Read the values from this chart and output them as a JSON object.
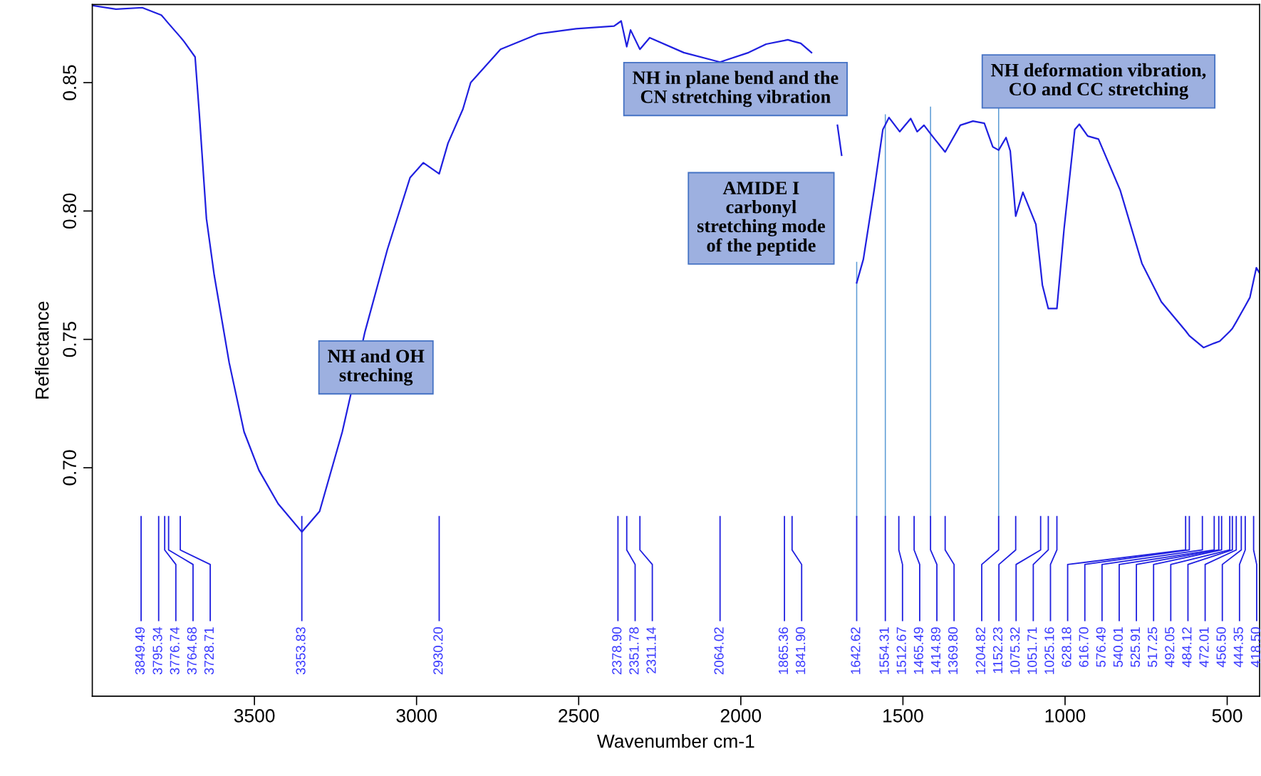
{
  "chart_data": {
    "type": "line",
    "xlabel": "Wavenumber cm-1",
    "ylabel": "Reflectance",
    "xlim": [
      4000,
      400
    ],
    "ylim": [
      0.611,
      0.8804
    ],
    "xticks": [
      3500,
      3000,
      2500,
      2000,
      1500,
      1000,
      500
    ],
    "yticks": [
      {
        "value": 0.7,
        "label": "0.70"
      },
      {
        "value": 0.75,
        "label": "0.75"
      },
      {
        "value": 0.8,
        "label": "0.80"
      },
      {
        "value": 0.85,
        "label": "0.85"
      }
    ],
    "grid": false,
    "marker": "none",
    "line_style": "solid",
    "series": [
      {
        "color": "#2020e0",
        "x": [
          3999,
          3927,
          3846,
          3795.34,
          3787,
          3776.74,
          3764.68,
          3728.71,
          3717,
          3683,
          3670,
          3648,
          3624,
          3578,
          3532,
          3486,
          3427,
          3353.83,
          3299,
          3229,
          3159,
          3090,
          3020,
          2979,
          2930.2,
          2903,
          2857,
          2833,
          2741,
          2624,
          2508,
          2391,
          2378.9,
          2369,
          2351.78,
          2340,
          2311.14,
          2281,
          2176,
          2064.02,
          1976,
          1922,
          1865.36,
          1855,
          1841.9,
          1815,
          1782,
          1740,
          1702,
          1689,
          1665,
          1642.62,
          1622,
          1589,
          1562,
          1554.31,
          1543,
          1510,
          1476,
          1465.49,
          1456,
          1435,
          1414.89,
          1402,
          1369.8,
          1323,
          1284,
          1249,
          1223,
          1204.82,
          1182,
          1169,
          1152.23,
          1130,
          1090,
          1075.32,
          1070,
          1051.71,
          1025.16,
          1003,
          970,
          956,
          930,
          897,
          830,
          763,
          703,
          628.18,
          616.7,
          573,
          540.01,
          523,
          517.25,
          492.05,
          484.12,
          472.01,
          456.5,
          444.35,
          430,
          418.5,
          410,
          401
        ],
        "values": [
          0.88,
          0.8786,
          0.8792,
          0.8767,
          0.8763,
          0.8748,
          0.873,
          0.8678,
          0.866,
          0.86,
          0.838,
          0.797,
          0.775,
          0.741,
          0.714,
          0.699,
          0.686,
          0.675,
          0.683,
          0.714,
          0.753,
          0.785,
          0.813,
          0.8188,
          0.8145,
          0.8264,
          0.8397,
          0.85,
          0.863,
          0.869,
          0.871,
          0.872,
          0.8731,
          0.874,
          0.864,
          0.8705,
          0.863,
          0.8675,
          0.8617,
          0.858,
          0.8617,
          0.865,
          0.8664,
          0.8667,
          0.8662,
          0.8653,
          0.8617,
          null,
          0.8334,
          0.8217,
          null,
          0.772,
          0.7812,
          0.808,
          0.8317,
          0.8336,
          0.8364,
          0.8309,
          0.836,
          0.8333,
          0.8309,
          0.8334,
          0.8301,
          0.828,
          0.823,
          0.8334,
          0.835,
          0.8342,
          0.825,
          0.8237,
          0.8286,
          0.8234,
          0.798,
          0.8073,
          0.7948,
          0.7776,
          0.7712,
          0.762,
          0.762,
          0.7931,
          0.8317,
          0.8338,
          0.8292,
          0.828,
          0.8081,
          0.7796,
          0.7646,
          0.7533,
          0.7514,
          0.7468,
          0.7485,
          0.7493,
          0.75,
          0.7531,
          0.7542,
          0.7568,
          0.7603,
          0.763,
          0.7663,
          0.773,
          0.7779,
          0.776
        ]
      }
    ],
    "annotations": [
      "NH in plane bend and the\nCN stretching vibration",
      "NH deformation vibration,\nCO and CC stretching",
      "AMIDE I\ncarbonyl\nstretching mode\nof the peptide",
      "NH and OH\nstreching",
      {
        "text": "3849.49",
        "x": 3849.49
      },
      {
        "text": "3795.34",
        "x": 3795.34
      },
      {
        "text": "3776.74",
        "x": 3776.74
      },
      {
        "text": "3764.68",
        "x": 3764.68
      },
      {
        "text": "3728.71",
        "x": 3728.71
      },
      {
        "text": "3353.83",
        "x": 3353.83
      },
      {
        "text": "2930.20",
        "x": 2930.2
      },
      {
        "text": "2378.90",
        "x": 2378.9
      },
      {
        "text": "2351.78",
        "x": 2351.78
      },
      {
        "text": "2311.14",
        "x": 2311.14
      },
      {
        "text": "2064.02",
        "x": 2064.02
      },
      {
        "text": "1865.36",
        "x": 1865.36
      },
      {
        "text": "1841.90",
        "x": 1841.9
      },
      {
        "text": "1642.62",
        "x": 1642.62
      },
      {
        "text": "1554.31",
        "x": 1554.31
      },
      {
        "text": "1512.67",
        "x": 1512.67
      },
      {
        "text": "1465.49",
        "x": 1465.49
      },
      {
        "text": "1414.89",
        "x": 1414.89
      },
      {
        "text": "1369.80",
        "x": 1369.8
      },
      {
        "text": "1204.82",
        "x": 1204.82
      },
      {
        "text": "1152.23",
        "x": 1152.23
      },
      {
        "text": "1075.32",
        "x": 1075.32
      },
      {
        "text": "1051.71",
        "x": 1051.71
      },
      {
        "text": "1025.16",
        "x": 1025.16
      },
      {
        "text": "628.18",
        "x": 628.18
      },
      {
        "text": "616.70",
        "x": 616.7
      },
      {
        "text": "576.49",
        "x": 576.49
      },
      {
        "text": "540.01",
        "x": 540.01
      },
      {
        "text": "525.91",
        "x": 525.91
      },
      {
        "text": "517.25",
        "x": 517.25
      },
      {
        "text": "492.05",
        "x": 492.05
      },
      {
        "text": "484.12",
        "x": 484.12
      },
      {
        "text": "472.01",
        "x": 472.01
      },
      {
        "text": "456.50",
        "x": 456.5
      },
      {
        "text": "444.35",
        "x": 444.35
      },
      {
        "text": "418.50",
        "x": 418.5
      }
    ]
  }
}
